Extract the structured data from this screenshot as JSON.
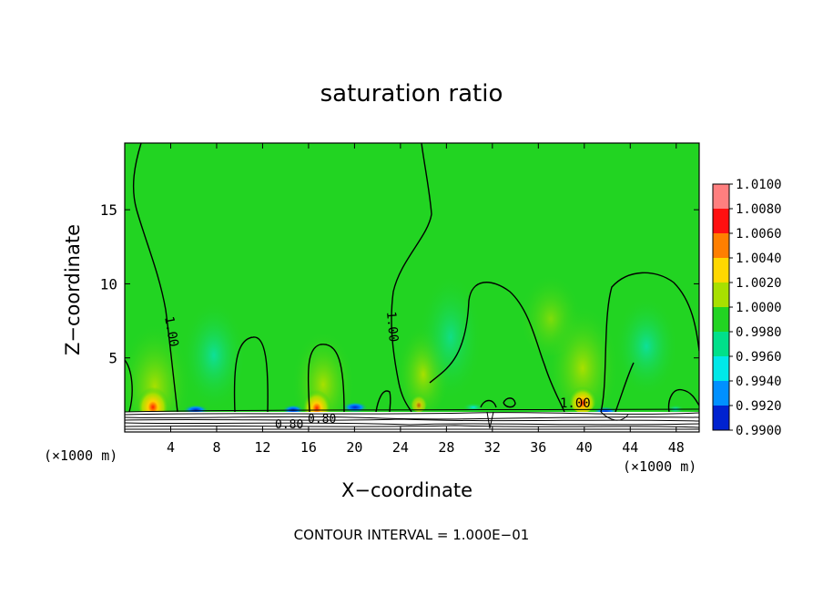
{
  "chart_data": {
    "type": "heatmap",
    "title": "saturation ratio",
    "xlabel": "X−coordinate",
    "ylabel": "Z−coordinate",
    "x_unit_left": "(×1000 m)",
    "x_unit_right": "(×1000 m)",
    "xlim": [
      0,
      50
    ],
    "ylim": [
      0,
      19.5
    ],
    "x_ticks": [
      4,
      8,
      12,
      16,
      20,
      24,
      28,
      32,
      36,
      40,
      44,
      48
    ],
    "y_ticks": [
      5,
      10,
      15
    ],
    "colorbar": {
      "levels": [
        "1.0100",
        "1.0080",
        "1.0060",
        "1.0040",
        "1.0020",
        "1.0000",
        "0.9980",
        "0.9960",
        "0.9940",
        "0.9920",
        "0.9900"
      ],
      "colors": [
        "#ff7f7f",
        "#ff1010",
        "#ff7f00",
        "#ffd800",
        "#a8e000",
        "#22d422",
        "#00e08a",
        "#00e8e8",
        "#0090ff",
        "#0022d0",
        "#7020a0"
      ]
    },
    "contour_labels": [
      "1.00",
      "1.00",
      "1.00",
      "0.80",
      "0.80"
    ],
    "contour_interval_note": "CONTOUR INTERVAL = 1.000E−01"
  }
}
